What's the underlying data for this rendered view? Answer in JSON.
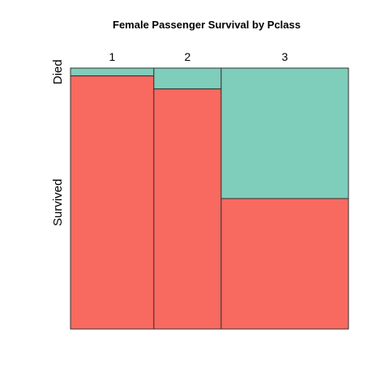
{
  "chart_data": {
    "type": "mosaic",
    "title": "Female Passenger Survival by Pclass",
    "column_variable": "Pclass",
    "row_variable": "Survived",
    "categories": [
      "1",
      "2",
      "3"
    ],
    "column_widths": [
      0.2998,
      0.2422,
      0.458
    ],
    "rows": [
      {
        "name": "Died",
        "label": "Died",
        "color": "#7FCDBB",
        "proportions": [
          0.03,
          0.08,
          0.5
        ]
      },
      {
        "name": "Survived",
        "label": "Survived",
        "color": "#F8695F",
        "proportions": [
          0.97,
          0.92,
          0.5
        ]
      }
    ],
    "border_color": "#333333"
  }
}
